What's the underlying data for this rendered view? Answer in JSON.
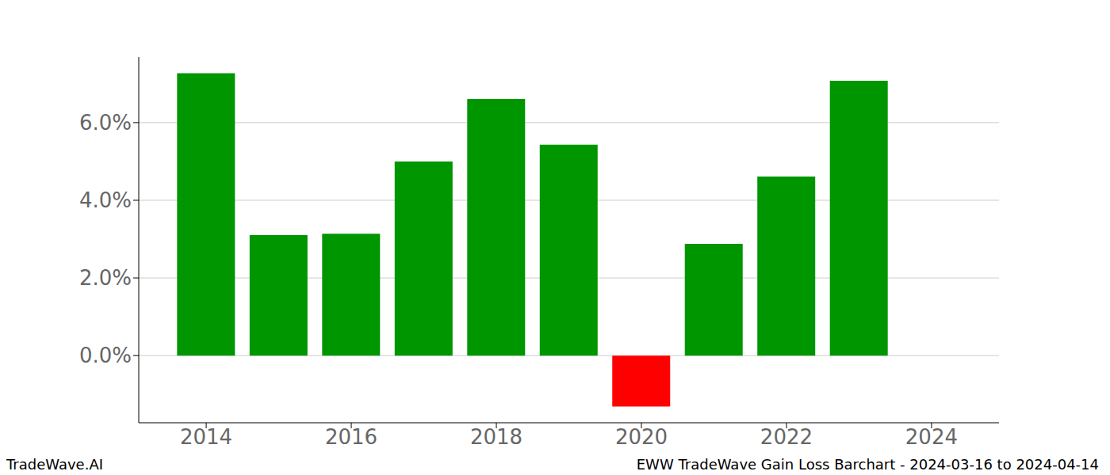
{
  "chart_data": {
    "type": "bar",
    "x": [
      2014,
      2015,
      2016,
      2017,
      2018,
      2019,
      2020,
      2021,
      2022,
      2023
    ],
    "values": [
      7.27,
      3.1,
      3.14,
      5.0,
      6.61,
      5.43,
      -1.31,
      2.88,
      4.61,
      7.08
    ],
    "colors": [
      "#009600",
      "#009600",
      "#009600",
      "#009600",
      "#009600",
      "#009600",
      "#ff0000",
      "#009600",
      "#009600",
      "#009600"
    ],
    "xlim": [
      2013.07,
      2024.93
    ],
    "xticks": [
      2014,
      2016,
      2018,
      2020,
      2022,
      2024
    ],
    "ylim": [
      -1.73,
      7.69
    ],
    "yticks": [
      {
        "value": 0,
        "label": "0.0%"
      },
      {
        "value": 2,
        "label": "2.0%"
      },
      {
        "value": 4,
        "label": "4.0%"
      },
      {
        "value": 6,
        "label": "6.0%"
      }
    ],
    "grid": true,
    "annotations": [
      "TradeWave.AI",
      "EWW TradeWave Gain Loss Barchart - 2024-03-16 to 2024-04-14"
    ]
  }
}
